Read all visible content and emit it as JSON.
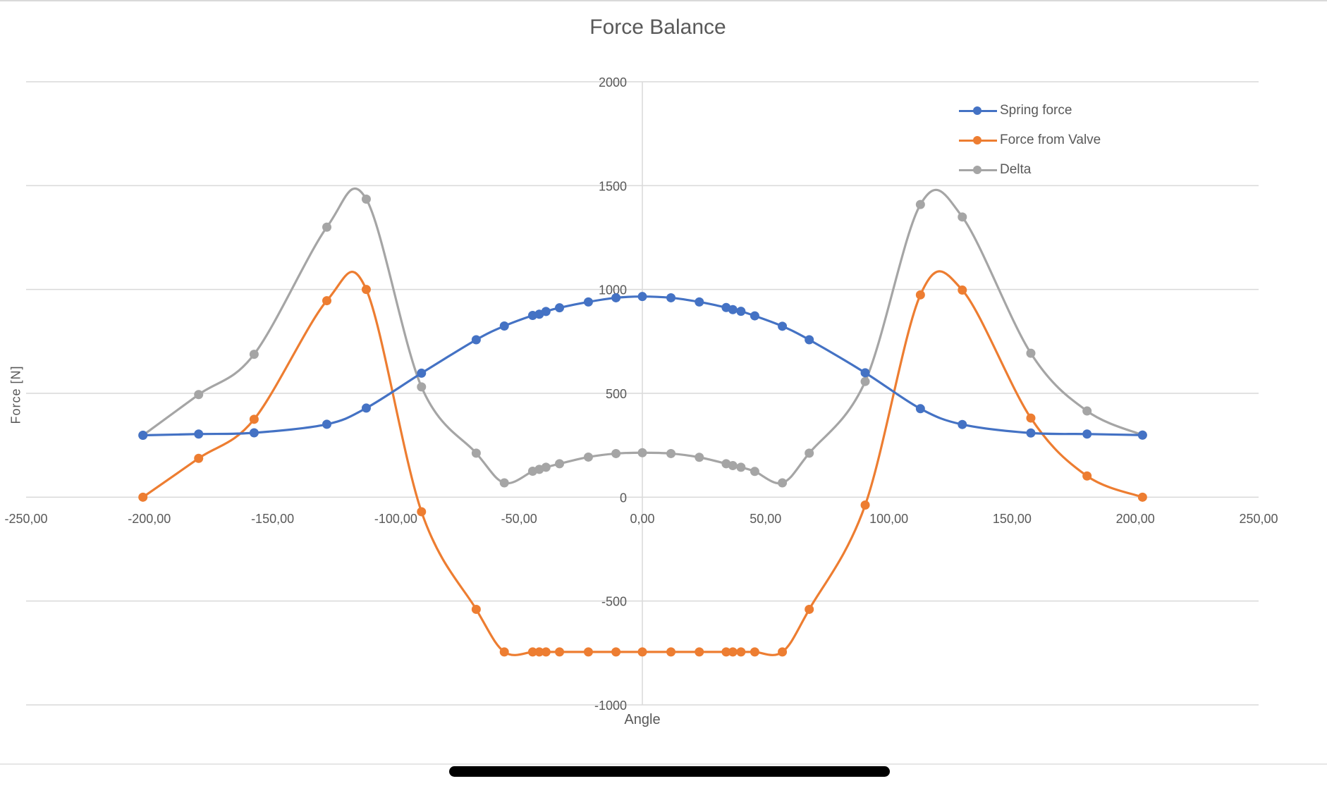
{
  "chart_data": {
    "type": "line",
    "title": "Force Balance",
    "xlabel": "Angle",
    "ylabel": "Force [N]",
    "xlim": [
      -250,
      250
    ],
    "ylim": [
      -1000,
      2000
    ],
    "x_ticks": [
      "-250,00",
      "-200,00",
      "-150,00",
      "-100,00",
      "-50,00",
      "0,00",
      "50,00",
      "100,00",
      "150,00",
      "200,00",
      "250,00"
    ],
    "y_ticks": [
      "2000",
      "1500",
      "1000",
      "500",
      "0",
      "-500",
      "-1000"
    ],
    "grid": "horizontal",
    "legend_position": "top-right",
    "smooth": true,
    "x": [
      -202.6,
      -180,
      -157.5,
      -128,
      -112,
      -89.6,
      -67.4,
      -56,
      -44.5,
      -41.8,
      -39.1,
      -33.6,
      -21.9,
      -10.7,
      0,
      11.6,
      23.1,
      34,
      36.7,
      40,
      45.6,
      56.8,
      67.7,
      90.4,
      112.8,
      129.8,
      157.6,
      180.4,
      202.9
    ],
    "series": [
      {
        "name": "Spring force",
        "color": "#4472C4",
        "values": [
          298,
          304,
          310,
          351,
          429,
          597,
          758,
          824,
          875,
          881,
          894,
          912,
          940,
          960,
          966,
          960,
          940,
          913,
          903,
          895,
          873,
          823,
          758,
          599,
          426,
          350,
          309,
          304,
          299
        ]
      },
      {
        "name": "Force from Valve",
        "color": "#ED7D31",
        "values": [
          0,
          187,
          375,
          946,
          1000,
          -70,
          -540,
          -745,
          -745,
          -745,
          -745,
          -745,
          -745,
          -745,
          -745,
          -745,
          -745,
          -745,
          -745,
          -745,
          -745,
          -745,
          -540,
          -38,
          974,
          997,
          381,
          102,
          0
        ]
      },
      {
        "name": "Delta",
        "color": "#A5A5A5",
        "values": [
          298,
          494,
          688,
          1300,
          1435,
          531,
          212,
          69,
          125,
          134,
          144,
          161,
          193,
          210,
          214,
          210,
          192,
          161,
          152,
          144,
          124,
          69,
          212,
          557,
          1409,
          1349,
          693,
          415,
          299
        ]
      }
    ]
  },
  "legend": [
    {
      "label": "Spring force",
      "color": "#4472C4"
    },
    {
      "label": "Force from Valve",
      "color": "#ED7D31"
    },
    {
      "label": "Delta",
      "color": "#A5A5A5"
    }
  ]
}
